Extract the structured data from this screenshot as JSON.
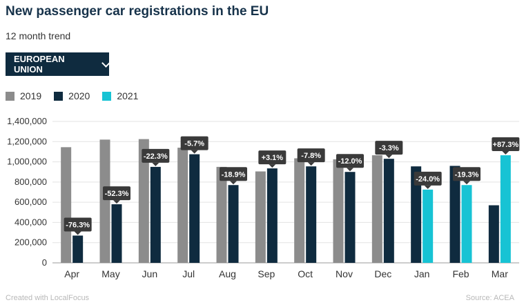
{
  "header": {
    "title": "New passenger car registrations in the EU",
    "subtitle": "12 month trend"
  },
  "dropdown": {
    "label": "EUROPEAN UNION",
    "icon": "chevron-down-icon"
  },
  "footer": {
    "credit": "Created with LocalFocus",
    "source": "Source: ACEA"
  },
  "chart_data": {
    "type": "bar",
    "title": "New passenger car registrations in the EU",
    "subtitle": "12 month trend",
    "categories": [
      "Apr",
      "May",
      "Jun",
      "Jul",
      "Aug",
      "Sep",
      "Oct",
      "Nov",
      "Dec",
      "Jan",
      "Feb",
      "Mar"
    ],
    "series": [
      {
        "name": "2019",
        "color": "#8c8c8c",
        "values": [
          1145000,
          1220000,
          1225000,
          1140000,
          950000,
          905000,
          1035000,
          1025000,
          1065000,
          null,
          null,
          null
        ]
      },
      {
        "name": "2020",
        "color": "#0f2b3f",
        "values": [
          270000,
          580000,
          950000,
          1075000,
          770000,
          935000,
          955000,
          900000,
          1030000,
          955000,
          960000,
          570000
        ]
      },
      {
        "name": "2021",
        "color": "#17c3d4",
        "values": [
          null,
          null,
          null,
          null,
          null,
          null,
          null,
          null,
          null,
          725000,
          770000,
          1065000
        ]
      }
    ],
    "annotations": [
      "-76.3%",
      "-52.3%",
      "-22.3%",
      "-5.7%",
      "-18.9%",
      "+3.1%",
      "-7.8%",
      "-12.0%",
      "-3.3%",
      "-24.0%",
      "-19.3%",
      "+87.3%"
    ],
    "annotation_values": [
      270000,
      580000,
      950000,
      1075000,
      770000,
      935000,
      955000,
      900000,
      1030000,
      725000,
      770000,
      1065000
    ],
    "y_ticks": [
      "0",
      "200,000",
      "400,000",
      "600,000",
      "800,000",
      "1,000,000",
      "1,200,000",
      "1,400,000"
    ],
    "ylim": [
      0,
      1400000
    ],
    "grid": true,
    "legend": "top-left"
  }
}
